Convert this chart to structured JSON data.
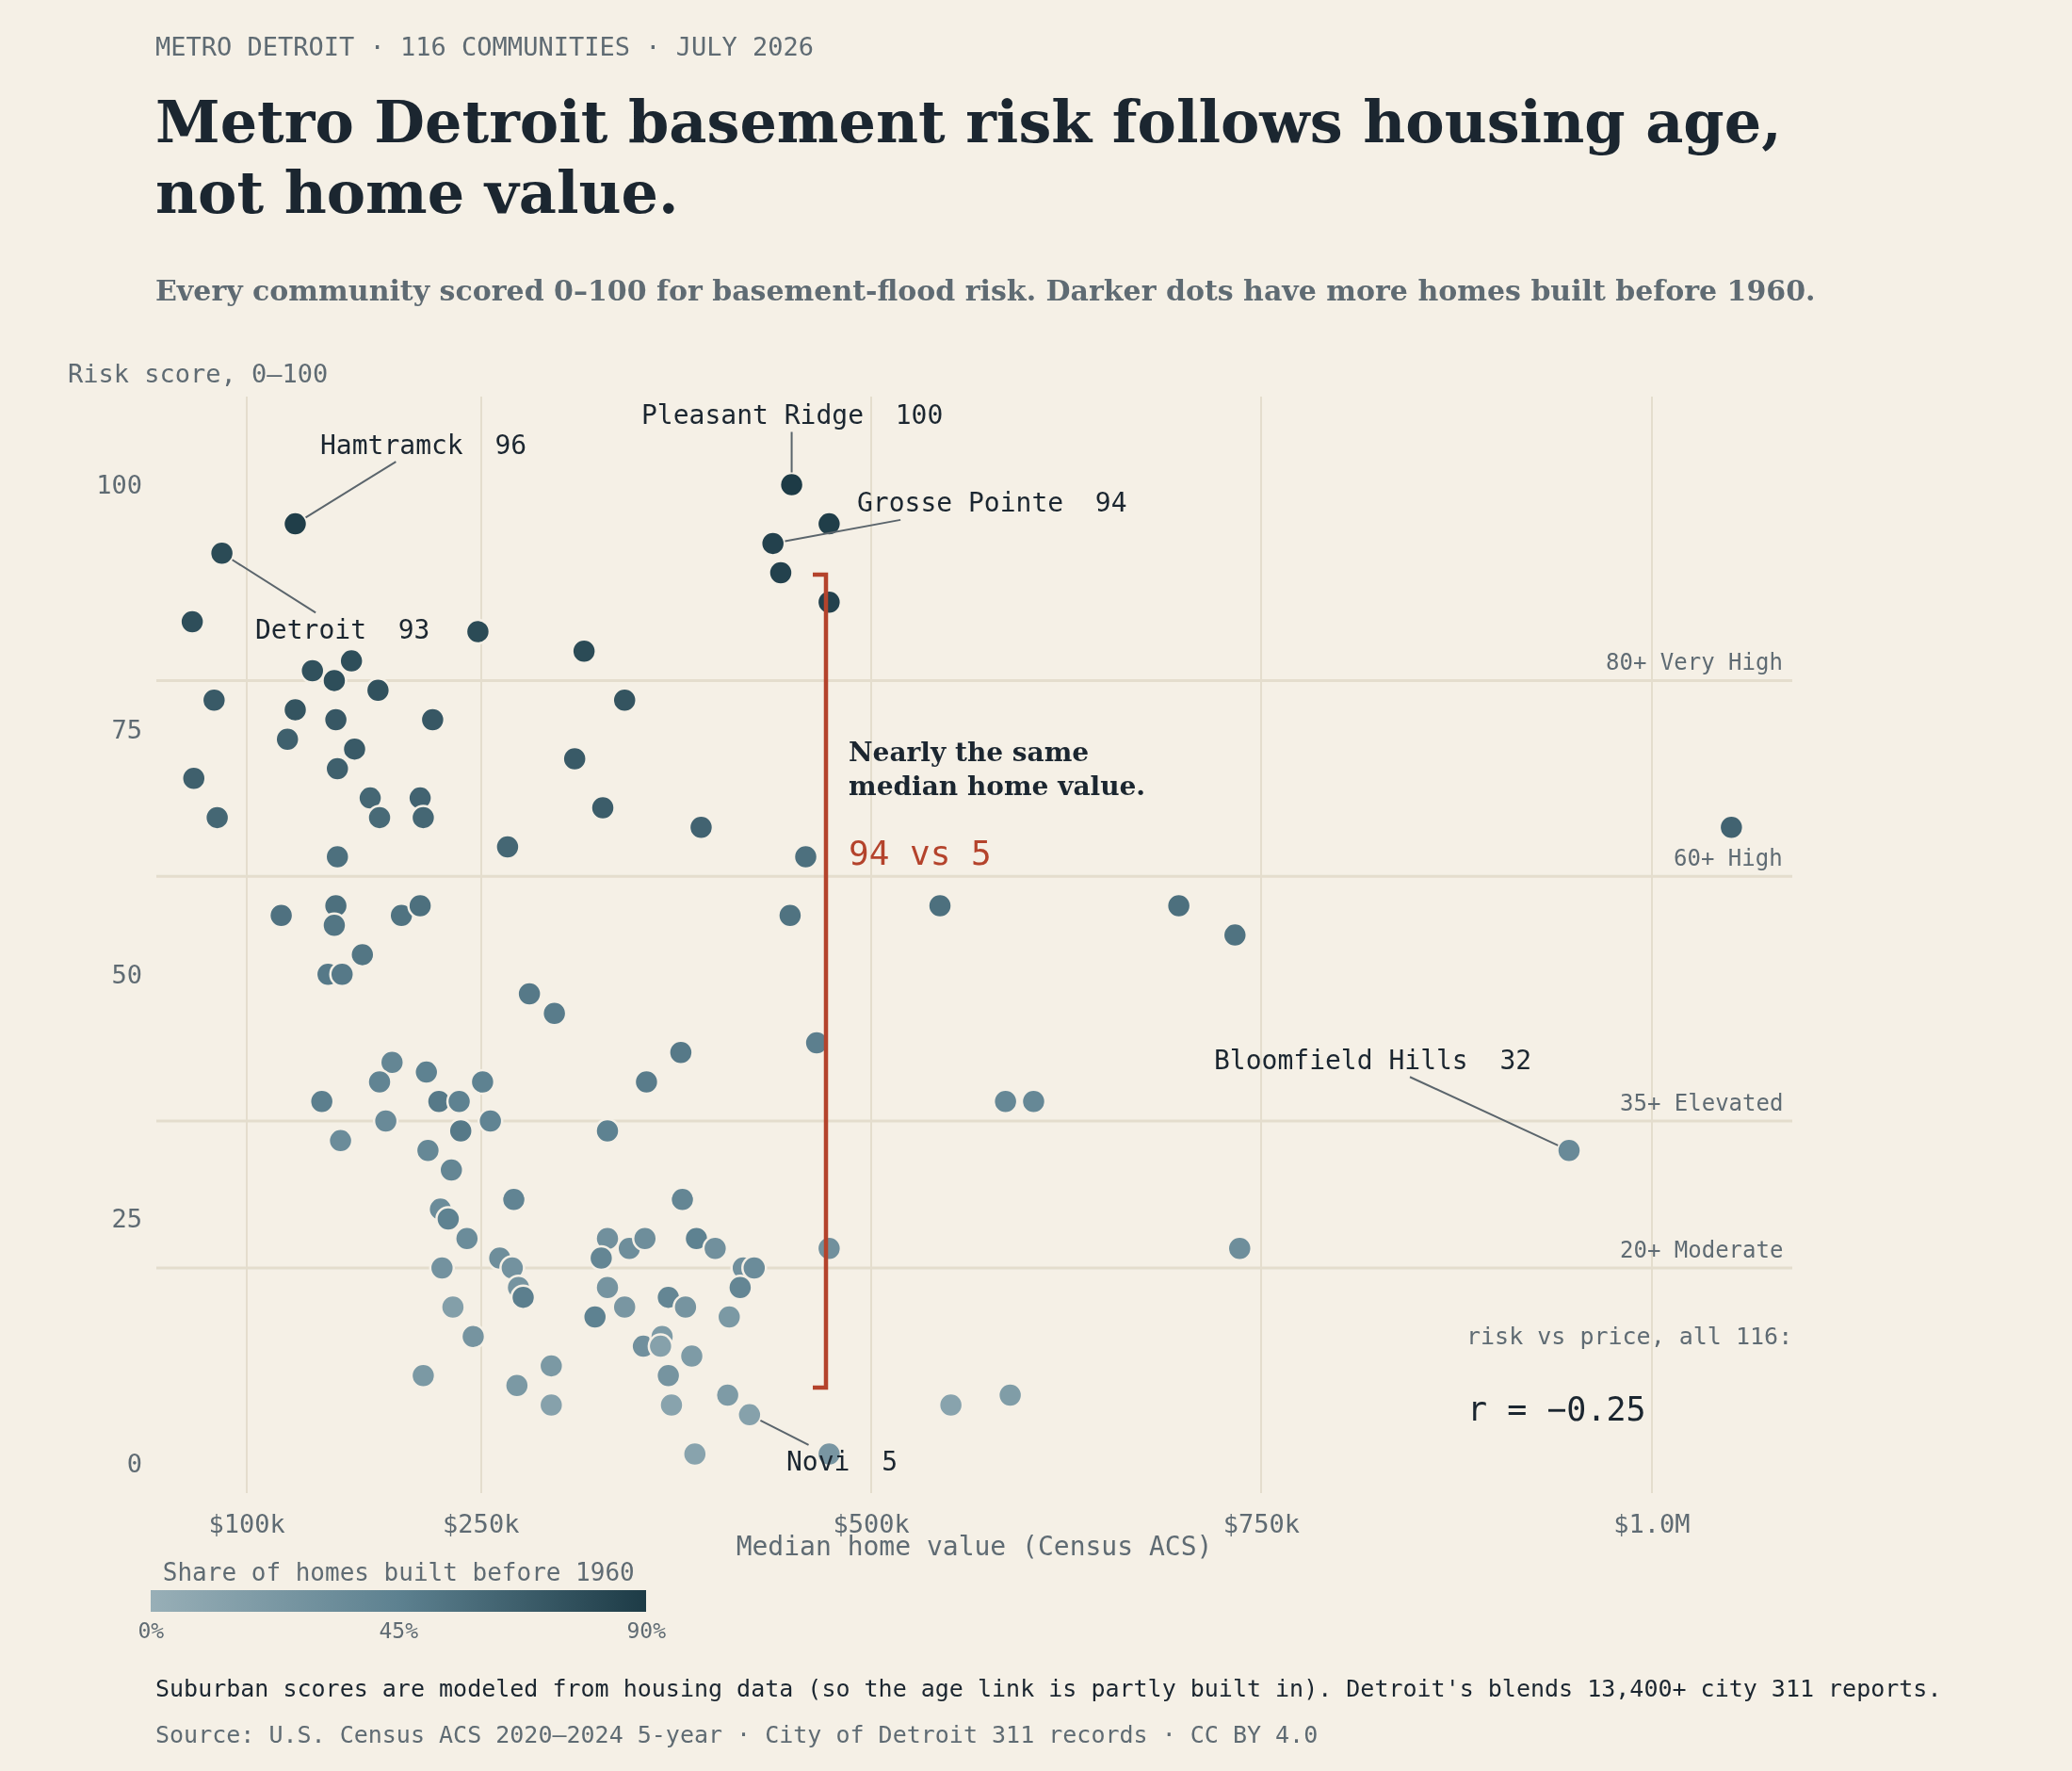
{
  "chart_data": {
    "type": "scatter",
    "title": "Metro Detroit basement risk follows housing age, not home value.",
    "subtitle": "Every community scored 0–100 for basement-flood risk. Darker dots have more homes built before 1960.",
    "xlabel": "Median home value (Census ACS)",
    "ylabel": "Risk score, 0–100",
    "clabel": "Share of homes built before 1960",
    "x": [
      131000,
      84000,
      65000,
      248000,
      316000,
      167000,
      142000,
      156000,
      184000,
      342000,
      79000,
      131000,
      157000,
      219000,
      126000,
      169000,
      158000,
      310000,
      66000,
      179000,
      211000,
      185000,
      213000,
      81000,
      328000,
      158000,
      267000,
      122000,
      157000,
      156000,
      199000,
      211000,
      174000,
      152000,
      161000,
      281000,
      297000,
      193000,
      215000,
      185000,
      251000,
      148000,
      223000,
      236000,
      189000,
      256000,
      237000,
      331000,
      160000,
      216000,
      231000,
      271000,
      224000,
      229000,
      241000,
      331000,
      327000,
      345000,
      355000,
      262000,
      270000,
      274000,
      277000,
      225000,
      232000,
      331000,
      342000,
      323000,
      245000,
      354000,
      213000,
      295000,
      273000,
      295000,
      378000,
      356000,
      465000,
      586000,
      604000,
      379000,
      388000,
      400000,
      473000,
      418000,
      425000,
      416000,
      370000,
      381000,
      409000,
      366000,
      365000,
      385000,
      370000,
      372000,
      408000,
      422000,
      387000,
      473000,
      551000,
      589000,
      449000,
      473000,
      437000,
      442000,
      473000,
      391000,
      458000,
      448000,
      544000,
      1051000,
      697000,
      733000,
      947000,
      736000
    ],
    "values": [
      96,
      93,
      86,
      85,
      83,
      82,
      81,
      80,
      79,
      78,
      78,
      77,
      76,
      76,
      74,
      73,
      71,
      72,
      70,
      68,
      68,
      66,
      66,
      66,
      67,
      62,
      63,
      56,
      57,
      55,
      56,
      57,
      52,
      50,
      50,
      48,
      46,
      41,
      40,
      39,
      39,
      37,
      37,
      37,
      35,
      35,
      34,
      34,
      33,
      32,
      30,
      27,
      26,
      25,
      23,
      23,
      21,
      22,
      23,
      21,
      20,
      18,
      17,
      20,
      16,
      18,
      16,
      15,
      13,
      12,
      9,
      10,
      8,
      6,
      42,
      39,
      43,
      37,
      37,
      27,
      23,
      22,
      22,
      20,
      20,
      18,
      17,
      16,
      15,
      13,
      12,
      11,
      9,
      6,
      7,
      5,
      1,
      1,
      6,
      7,
      100,
      96,
      94,
      91,
      88,
      65,
      62,
      56,
      57,
      65,
      57,
      54,
      32,
      22
    ],
    "cvalues": [
      88,
      80,
      78,
      80,
      80,
      78,
      76,
      78,
      76,
      74,
      70,
      74,
      72,
      72,
      66,
      70,
      66,
      70,
      66,
      62,
      64,
      60,
      62,
      62,
      68,
      56,
      62,
      55,
      56,
      52,
      54,
      56,
      52,
      50,
      50,
      50,
      48,
      40,
      44,
      42,
      44,
      46,
      50,
      44,
      36,
      42,
      50,
      44,
      34,
      38,
      40,
      42,
      34,
      44,
      34,
      30,
      40,
      32,
      32,
      32,
      28,
      26,
      46,
      28,
      16,
      26,
      24,
      44,
      26,
      30,
      22,
      22,
      22,
      14,
      50,
      48,
      46,
      38,
      38,
      40,
      44,
      30,
      30,
      30,
      34,
      40,
      40,
      26,
      22,
      20,
      14,
      20,
      26,
      12,
      20,
      14,
      12,
      24,
      12,
      18,
      90,
      88,
      86,
      86,
      86,
      64,
      56,
      54,
      56,
      64,
      56,
      54,
      36,
      32
    ],
    "clim": [
      0,
      90
    ],
    "cticks": [
      {
        "value": 0,
        "label": "0%"
      },
      {
        "value": 45,
        "label": "45%"
      },
      {
        "value": 90,
        "label": "90%"
      }
    ],
    "xlim": [
      42000,
      1090000
    ],
    "ylim": [
      -3,
      109
    ],
    "xticks": [
      {
        "value": 100000,
        "label": "$100k"
      },
      {
        "value": 250000,
        "label": "$250k"
      },
      {
        "value": 500000,
        "label": "$500k"
      },
      {
        "value": 750000,
        "label": "$750k"
      },
      {
        "value": 1000000,
        "label": "$1.0M"
      }
    ],
    "yticks": [
      0,
      25,
      50,
      75,
      100
    ],
    "grid": "x",
    "marker": "circle",
    "ref_lines": [
      {
        "axis": "y",
        "value": 80,
        "label": "80+ Very High"
      },
      {
        "axis": "y",
        "value": 60,
        "label": "60+ High"
      },
      {
        "axis": "y",
        "value": 35,
        "label": "35+ Elevated"
      },
      {
        "axis": "y",
        "value": 20,
        "label": "20+ Moderate"
      }
    ],
    "annotations": [
      "METRO DETROIT · 116 COMMUNITIES · JULY 2026",
      "Nearly the same median home value.",
      "94 vs 5",
      "risk vs price, all 116:",
      "r = −0.25",
      "Suburban scores are modeled from housing data (so the age link is partly built in). Detroit's blends 13,400+ city 311 reports.",
      "Source: U.S. Census ACS 2020–2024 5-year · City of Detroit 311 records · CC BY 4.0",
      {
        "text": "Hamtramck  96",
        "x": 131000,
        "y": 96
      },
      {
        "text": "Detroit  93",
        "x": 84000,
        "y": 93
      },
      {
        "text": "Pleasant Ridge  100",
        "x": 449000,
        "y": 100
      },
      {
        "text": "Grosse Pointe  94",
        "x": 437000,
        "y": 94
      },
      {
        "text": "Bloomfield Hills  32",
        "x": 947000,
        "y": 32
      },
      {
        "text": "Novi  5",
        "x": 422000,
        "y": 5
      }
    ]
  }
}
